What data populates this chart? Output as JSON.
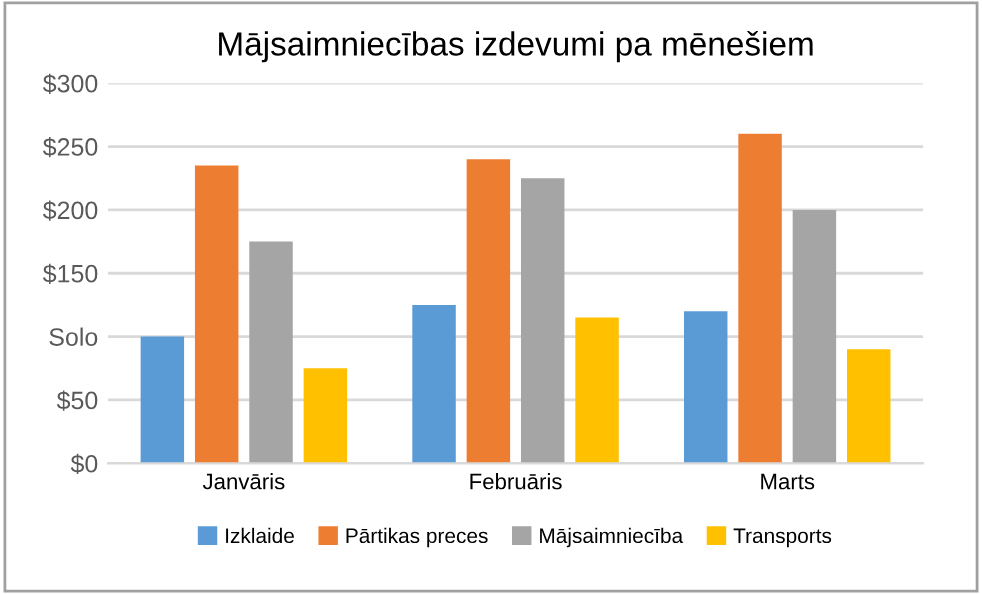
{
  "chart_data": {
    "type": "bar",
    "title": "Mājsaimniecības izdevumi pa mēnešiem",
    "categories": [
      "Janvāris",
      "Februāris",
      "Marts"
    ],
    "series": [
      {
        "name": "Izklaide",
        "color": "#5b9bd5",
        "values": [
          100,
          125,
          120
        ]
      },
      {
        "name": "Pārtikas preces",
        "color": "#ed7d31",
        "values": [
          235,
          240,
          260
        ]
      },
      {
        "name": "Mājsaimniecība",
        "color": "#a5a5a5",
        "values": [
          175,
          225,
          200
        ]
      },
      {
        "name": "Transports",
        "color": "#ffc000",
        "values": [
          75,
          115,
          90
        ]
      }
    ],
    "ylim": [
      0,
      300
    ],
    "yticks": [
      {
        "value": 0,
        "label": "$0"
      },
      {
        "value": 50,
        "label": "$50"
      },
      {
        "value": 100,
        "label": "Solo"
      },
      {
        "value": 150,
        "label": "$150"
      },
      {
        "value": 200,
        "label": "$200"
      },
      {
        "value": 250,
        "label": "$250"
      },
      {
        "value": 300,
        "label": "$300"
      }
    ],
    "grid": "y",
    "legend": "bottom"
  }
}
